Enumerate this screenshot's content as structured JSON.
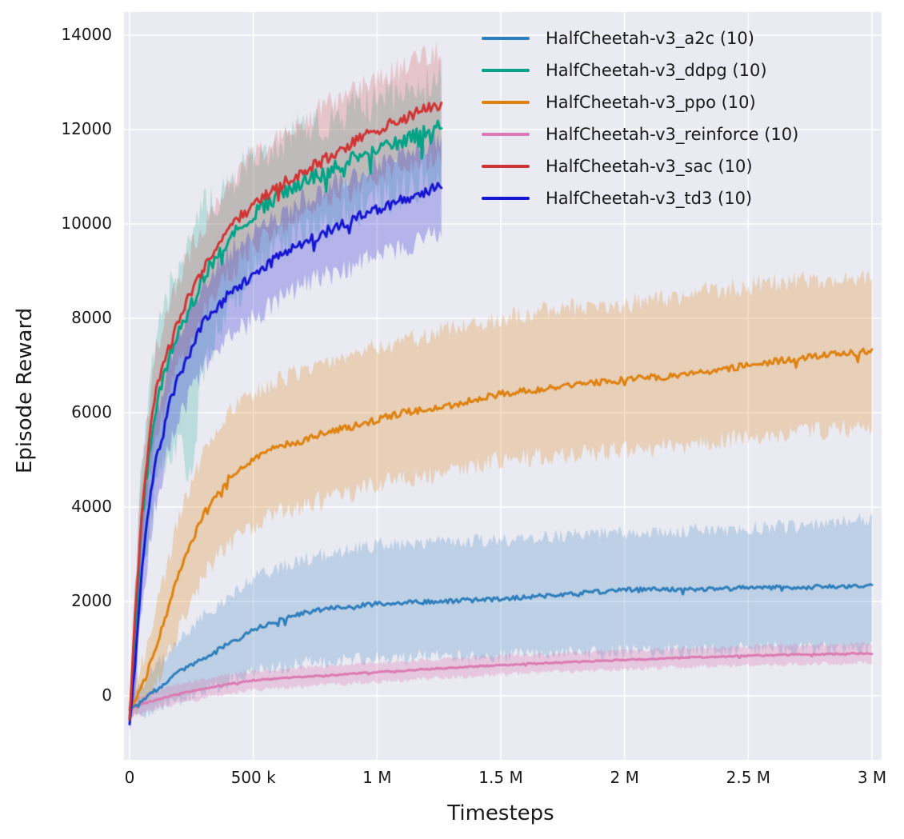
{
  "chart_data": {
    "type": "line",
    "title": "",
    "xlabel": "Timesteps",
    "ylabel": "Episode Reward",
    "xlim": [
      0,
      3000000
    ],
    "ylim": [
      -1355,
      14490
    ],
    "grid": true,
    "legend_position": "upper right inside",
    "plot_bg": "#eaeaf2",
    "grid_color": "#ffffff",
    "text_color": "#1a1a1a",
    "xticks": [
      {
        "value": 0,
        "label": "0"
      },
      {
        "value": 500000,
        "label": "500 k"
      },
      {
        "value": 1000000,
        "label": "1 M"
      },
      {
        "value": 1500000,
        "label": "1.5 M"
      },
      {
        "value": 2000000,
        "label": "2 M"
      },
      {
        "value": 2500000,
        "label": "2.5 M"
      },
      {
        "value": 3000000,
        "label": "3 M"
      }
    ],
    "yticks": [
      {
        "value": 0,
        "label": "0"
      },
      {
        "value": 2000,
        "label": "2000"
      },
      {
        "value": 4000,
        "label": "4000"
      },
      {
        "value": 6000,
        "label": "6000"
      },
      {
        "value": 8000,
        "label": "8000"
      },
      {
        "value": 10000,
        "label": "10000"
      },
      {
        "value": 12000,
        "label": "12000"
      },
      {
        "value": 14000,
        "label": "14000"
      }
    ],
    "series": [
      {
        "name": "HalfCheetah-v3_a2c (10)",
        "color": "#2e7ebc",
        "band_alpha": 0.24,
        "noise": 45,
        "band_noise": 160,
        "seed": 11,
        "points": [
          [
            0,
            -300,
            -500,
            -100
          ],
          [
            100000,
            100,
            -300,
            600
          ],
          [
            200000,
            500,
            -100,
            1200
          ],
          [
            300000,
            800,
            100,
            1700
          ],
          [
            400000,
            1100,
            300,
            2100
          ],
          [
            500000,
            1400,
            500,
            2500
          ],
          [
            600000,
            1600,
            600,
            2700
          ],
          [
            700000,
            1750,
            700,
            2900
          ],
          [
            800000,
            1850,
            750,
            3000
          ],
          [
            1000000,
            1950,
            800,
            3200
          ],
          [
            1250000,
            2000,
            850,
            3250
          ],
          [
            1500000,
            2050,
            850,
            3300
          ],
          [
            1750000,
            2150,
            900,
            3400
          ],
          [
            2000000,
            2250,
            950,
            3450
          ],
          [
            2250000,
            2250,
            950,
            3500
          ],
          [
            2500000,
            2300,
            1000,
            3550
          ],
          [
            2750000,
            2300,
            1000,
            3600
          ],
          [
            3000000,
            2350,
            1000,
            3750
          ]
        ]
      },
      {
        "name": "HalfCheetah-v3_ddpg (10)",
        "color": "#00a386",
        "band_alpha": 0.2,
        "noise": 160,
        "band_noise": 450,
        "seed": 22,
        "points": [
          [
            0,
            -500,
            -700,
            -300
          ],
          [
            20000,
            1200,
            400,
            2000
          ],
          [
            50000,
            3800,
            2500,
            5000
          ],
          [
            100000,
            6000,
            4300,
            7400
          ],
          [
            150000,
            7000,
            5000,
            8400
          ],
          [
            200000,
            7700,
            5200,
            9200
          ],
          [
            250000,
            8300,
            4800,
            9800
          ],
          [
            300000,
            8900,
            7000,
            10300
          ],
          [
            400000,
            9700,
            8300,
            10900
          ],
          [
            500000,
            10200,
            9000,
            11400
          ],
          [
            600000,
            10600,
            9500,
            11700
          ],
          [
            700000,
            10900,
            9800,
            12000
          ],
          [
            800000,
            11100,
            10000,
            12200
          ],
          [
            900000,
            11400,
            10300,
            12400
          ],
          [
            1000000,
            11600,
            10500,
            12600
          ],
          [
            1100000,
            11750,
            10700,
            12750
          ],
          [
            1200000,
            11950,
            10900,
            12950
          ],
          [
            1260000,
            12050,
            11000,
            13050
          ]
        ]
      },
      {
        "name": "HalfCheetah-v3_ppo (10)",
        "color": "#df810d",
        "band_alpha": 0.25,
        "noise": 70,
        "band_noise": 220,
        "seed": 33,
        "points": [
          [
            0,
            -300,
            -500,
            -100
          ],
          [
            50000,
            200,
            -200,
            700
          ],
          [
            100000,
            900,
            200,
            1700
          ],
          [
            200000,
            2600,
            1400,
            3800
          ],
          [
            300000,
            3900,
            2600,
            5200
          ],
          [
            400000,
            4600,
            3200,
            6000
          ],
          [
            500000,
            5000,
            3600,
            6400
          ],
          [
            600000,
            5300,
            3900,
            6700
          ],
          [
            700000,
            5400,
            4000,
            6900
          ],
          [
            800000,
            5600,
            4200,
            7100
          ],
          [
            900000,
            5700,
            4300,
            7200
          ],
          [
            1000000,
            5850,
            4500,
            7400
          ],
          [
            1100000,
            6000,
            4600,
            7500
          ],
          [
            1250000,
            6100,
            4700,
            7700
          ],
          [
            1500000,
            6400,
            5000,
            8000
          ],
          [
            1750000,
            6550,
            5100,
            8200
          ],
          [
            2000000,
            6700,
            5200,
            8300
          ],
          [
            2250000,
            6800,
            5300,
            8500
          ],
          [
            2500000,
            7000,
            5500,
            8700
          ],
          [
            2750000,
            7200,
            5600,
            8800
          ],
          [
            3000000,
            7300,
            5700,
            8800
          ]
        ]
      },
      {
        "name": "HalfCheetah-v3_reinforce (10)",
        "color": "#dc7ab3",
        "band_alpha": 0.3,
        "noise": 14,
        "band_noise": 50,
        "seed": 44,
        "points": [
          [
            0,
            -250,
            -450,
            -100
          ],
          [
            100000,
            -100,
            -300,
            100
          ],
          [
            200000,
            50,
            -150,
            250
          ],
          [
            300000,
            150,
            -50,
            350
          ],
          [
            400000,
            250,
            50,
            450
          ],
          [
            500000,
            330,
            120,
            520
          ],
          [
            750000,
            420,
            220,
            620
          ],
          [
            1000000,
            500,
            300,
            700
          ],
          [
            1250000,
            580,
            380,
            780
          ],
          [
            1500000,
            650,
            450,
            850
          ],
          [
            1750000,
            710,
            510,
            910
          ],
          [
            2000000,
            760,
            560,
            960
          ],
          [
            2250000,
            810,
            610,
            1010
          ],
          [
            2500000,
            850,
            650,
            1050
          ],
          [
            2750000,
            880,
            680,
            1080
          ],
          [
            3000000,
            900,
            700,
            1100
          ]
        ]
      },
      {
        "name": "HalfCheetah-v3_sac (10)",
        "color": "#d13434",
        "band_alpha": 0.2,
        "noise": 120,
        "band_noise": 280,
        "seed": 55,
        "points": [
          [
            0,
            -500,
            -600,
            -400
          ],
          [
            20000,
            1500,
            800,
            2200
          ],
          [
            50000,
            4000,
            3200,
            4800
          ],
          [
            100000,
            6300,
            5400,
            7200
          ],
          [
            150000,
            7200,
            6300,
            8100
          ],
          [
            200000,
            8000,
            7000,
            8900
          ],
          [
            300000,
            9100,
            8100,
            10000
          ],
          [
            400000,
            9900,
            8900,
            10800
          ],
          [
            500000,
            10400,
            9500,
            11400
          ],
          [
            600000,
            10800,
            9900,
            11800
          ],
          [
            700000,
            11100,
            10200,
            12200
          ],
          [
            800000,
            11400,
            10500,
            12500
          ],
          [
            900000,
            11700,
            10700,
            12800
          ],
          [
            1000000,
            12000,
            11000,
            13100
          ],
          [
            1100000,
            12200,
            11200,
            13300
          ],
          [
            1200000,
            12450,
            11400,
            13550
          ],
          [
            1260000,
            12550,
            11500,
            13650
          ]
        ]
      },
      {
        "name": "HalfCheetah-v3_td3 (10)",
        "color": "#1515d3",
        "band_alpha": 0.25,
        "noise": 110,
        "band_noise": 250,
        "seed": 66,
        "points": [
          [
            0,
            -600,
            -750,
            -450
          ],
          [
            20000,
            500,
            0,
            1000
          ],
          [
            50000,
            2800,
            2000,
            3600
          ],
          [
            100000,
            4800,
            3900,
            5700
          ],
          [
            150000,
            6000,
            5100,
            6900
          ],
          [
            200000,
            6800,
            5900,
            7700
          ],
          [
            300000,
            7900,
            7000,
            8800
          ],
          [
            400000,
            8500,
            7600,
            9400
          ],
          [
            500000,
            8900,
            8000,
            9800
          ],
          [
            600000,
            9300,
            8400,
            10200
          ],
          [
            700000,
            9600,
            8700,
            10500
          ],
          [
            800000,
            9850,
            8900,
            10800
          ],
          [
            900000,
            10100,
            9100,
            11000
          ],
          [
            1000000,
            10300,
            9300,
            11300
          ],
          [
            1100000,
            10500,
            9500,
            11500
          ],
          [
            1200000,
            10700,
            9700,
            11700
          ],
          [
            1260000,
            10820,
            9800,
            11800
          ]
        ]
      }
    ]
  }
}
